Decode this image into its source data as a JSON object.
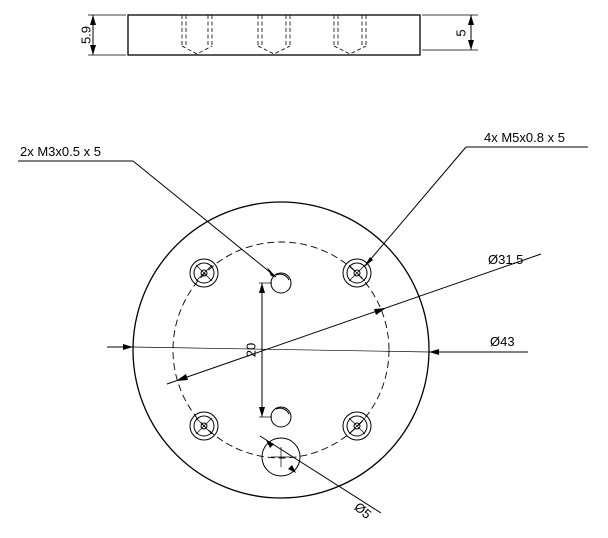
{
  "side_view": {
    "dim_total_height": "5.9",
    "dim_thread_depth": "5"
  },
  "top_view": {
    "callout_m3": "2x M3x0.5 x 5",
    "callout_m5": "4x M5x0.8 x 5",
    "dim_bolt_circle": "Ø31.5",
    "dim_outer_diameter": "Ø43",
    "dim_hole_spacing": "20",
    "dim_center_hole": "Ø5"
  }
}
